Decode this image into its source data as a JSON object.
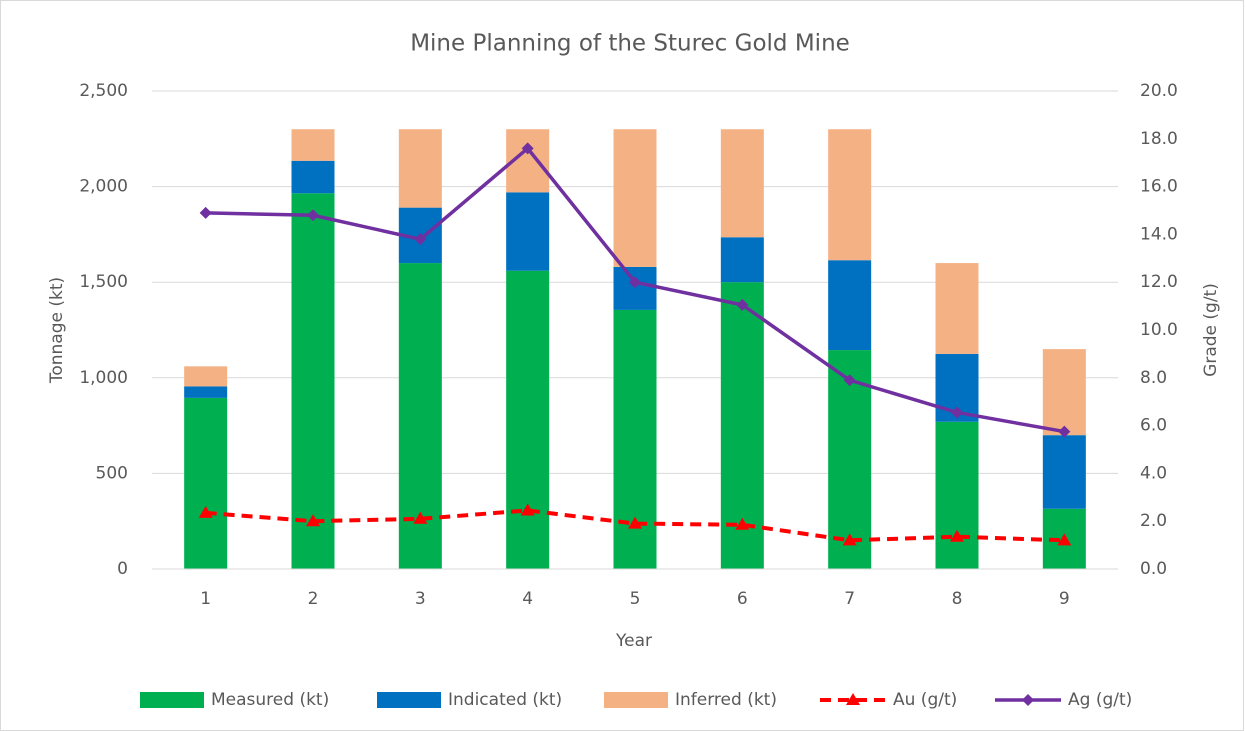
{
  "chart_data": {
    "type": "bar",
    "title": "Mine Planning of the Sturec Gold Mine",
    "x_label": "Year",
    "y_label": "Tonnage (kt)",
    "y2_label": "Grade (g/t)",
    "categories": [
      "1",
      "2",
      "3",
      "4",
      "5",
      "6",
      "7",
      "8",
      "9"
    ],
    "series": [
      {
        "name": "Measured (kt)",
        "color": "#00b050",
        "values": [
          895,
          1965,
          1600,
          1560,
          1355,
          1500,
          1145,
          770,
          315
        ]
      },
      {
        "name": "Indicated (kt)",
        "color": "#0070c0",
        "values": [
          60,
          170,
          290,
          410,
          225,
          235,
          470,
          355,
          385
        ]
      },
      {
        "name": "Inferred (kt)",
        "color": "#f4b183",
        "values": [
          105,
          165,
          410,
          330,
          720,
          565,
          685,
          475,
          450
        ]
      },
      {
        "name": "Au (g/t)",
        "color": "#ff0000",
        "type": "line",
        "axis": "y2",
        "dashed": true,
        "marker": "triangle",
        "values": [
          2.35,
          2.0,
          2.1,
          2.45,
          1.9,
          1.85,
          1.2,
          1.35,
          1.2
        ]
      },
      {
        "name": "Ag (g/t)",
        "color": "#7030a0",
        "type": "line",
        "axis": "y2",
        "marker": "diamond",
        "values": [
          14.9,
          14.8,
          13.8,
          17.6,
          12.0,
          11.05,
          7.9,
          6.55,
          5.75
        ]
      }
    ],
    "stacked": true,
    "ylim": [
      0,
      2500
    ],
    "yticks": [
      0,
      {
        "value": 500,
        "label": "500"
      },
      {
        "value": 1000,
        "label": "1,000"
      },
      {
        "value": 1500,
        "label": "1,500"
      },
      {
        "value": 2000,
        "label": "2,000"
      },
      {
        "value": 2500,
        "label": "2,500"
      }
    ],
    "y2lim": [
      0,
      20
    ],
    "y2ticks": [
      {
        "value": 0,
        "label": "0.0"
      },
      {
        "value": 2,
        "label": "2.0"
      },
      {
        "value": 4,
        "label": "4.0"
      },
      {
        "value": 6,
        "label": "6.0"
      },
      {
        "value": 8,
        "label": "8.0"
      },
      {
        "value": 10,
        "label": "10.0"
      },
      {
        "value": 12,
        "label": "12.0"
      },
      {
        "value": 14,
        "label": "14.0"
      },
      {
        "value": 16,
        "label": "16.0"
      },
      {
        "value": 18,
        "label": "18.0"
      },
      {
        "value": 20,
        "label": "20.0"
      }
    ],
    "grid": true,
    "legend": "bottom"
  }
}
